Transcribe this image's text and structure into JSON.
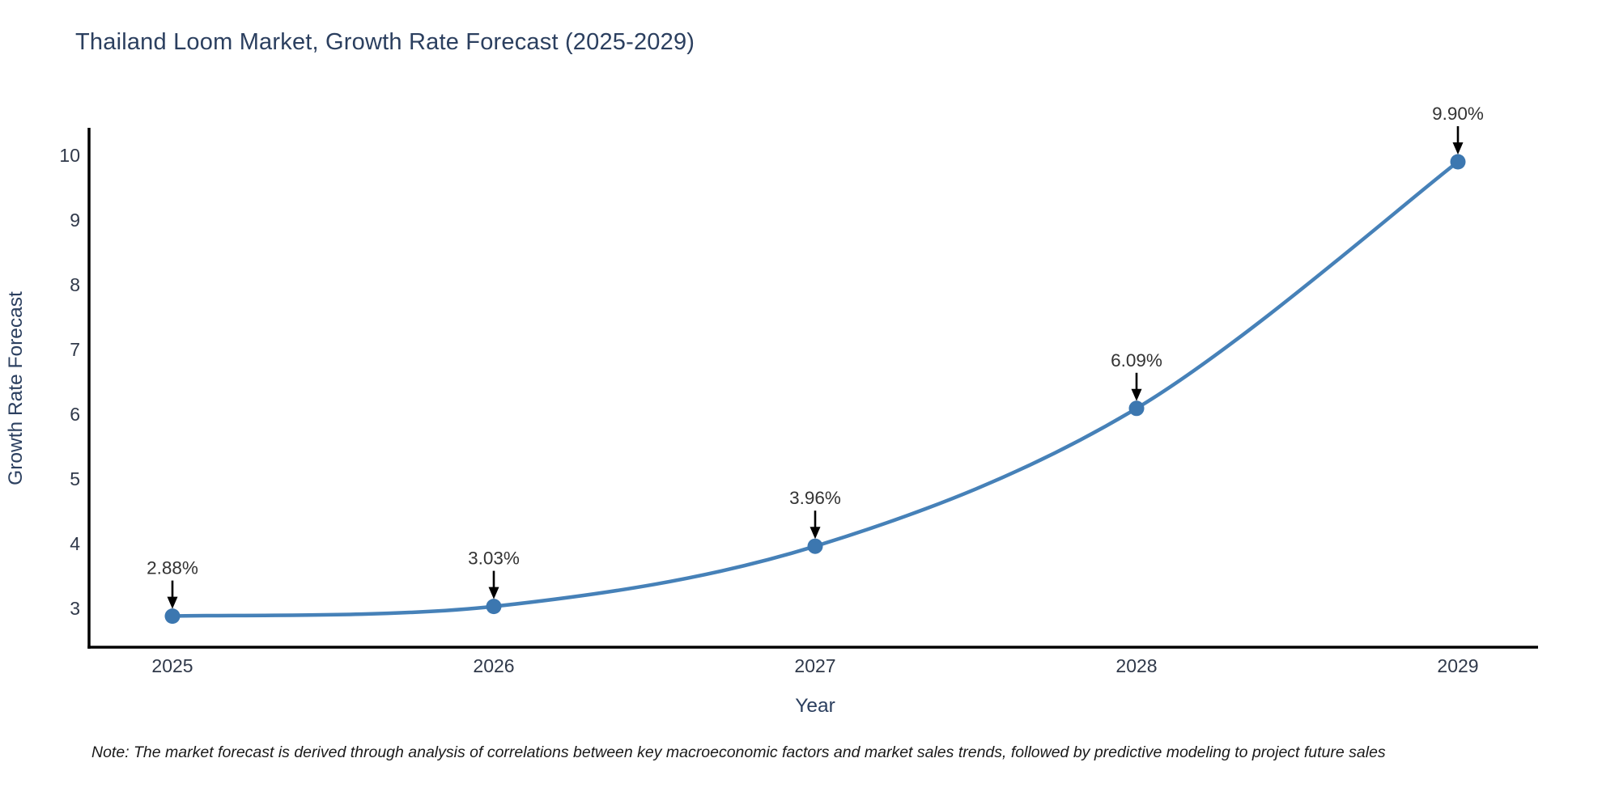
{
  "title": "Thailand Loom Market, Growth Rate Forecast (2025-2029)",
  "note": "Note: The market forecast is derived through analysis of correlations between key macroeconomic factors and market sales trends, followed by predictive modeling to project future sales",
  "chart_data": {
    "type": "line",
    "title": "Thailand Loom Market, Growth Rate Forecast (2025-2029)",
    "x": [
      2025,
      2026,
      2027,
      2028,
      2029
    ],
    "values": [
      2.88,
      3.03,
      3.96,
      6.09,
      9.9
    ],
    "point_labels": [
      "2.88%",
      "3.03%",
      "3.96%",
      "6.09%",
      "9.90%"
    ],
    "xlabel": "Year",
    "ylabel": "Growth Rate Forecast",
    "xticks": [
      "2025",
      "2026",
      "2027",
      "2028",
      "2029"
    ],
    "yticks": [
      3,
      4,
      5,
      6,
      7,
      8,
      9,
      10
    ],
    "xlim": [
      2024.74,
      2029.26
    ],
    "ylim": [
      2.4,
      10.4
    ],
    "grid": false,
    "line_shape": "spline",
    "legend": "none",
    "annotations_have_arrows": true,
    "colors": {
      "line": "#4681b8",
      "marker": "#3c77b0",
      "title_text": "#2b3f5f",
      "tick_text": "#30394a",
      "axis_title_text": "#2b3f5f",
      "annotation_text": "#333333",
      "axis_line": "#000000",
      "arrow": "#000000",
      "background": "#ffffff"
    }
  }
}
